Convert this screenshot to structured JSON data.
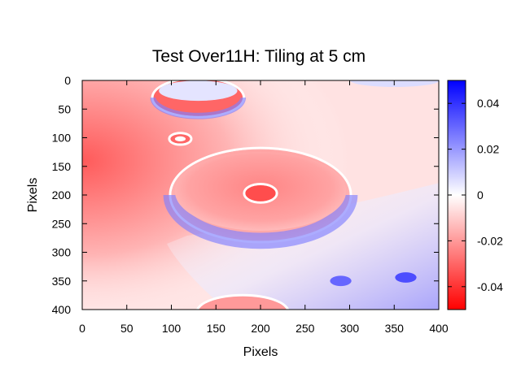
{
  "chart_data": {
    "type": "heatmap",
    "title": "Test Over11H: Tiling at 5 cm",
    "xlabel": "Pixels",
    "ylabel": "Pixels",
    "xlim": [
      0,
      400
    ],
    "ylim": [
      400,
      0
    ],
    "x_ticks": [
      "0",
      "50",
      "100",
      "150",
      "200",
      "250",
      "300",
      "350",
      "400"
    ],
    "y_ticks": [
      "0",
      "50",
      "100",
      "150",
      "200",
      "250",
      "300",
      "350",
      "400"
    ],
    "colorbar": {
      "min": -0.05,
      "max": 0.05,
      "ticks": [
        "0.04",
        "0.02",
        "0",
        "-0.02",
        "-0.04"
      ],
      "colors": {
        "low": "#ff0000",
        "mid": "#ffffff",
        "high": "#0000ff"
      }
    },
    "features": [
      {
        "shape": "ellipse",
        "cx": 200,
        "cy": 200,
        "rx": 100,
        "ry": 80,
        "value": -0.025,
        "note": "large tile"
      },
      {
        "shape": "ellipse",
        "cx": 130,
        "cy": 30,
        "rx": 50,
        "ry": 32,
        "value": -0.03,
        "note": "top tile"
      },
      {
        "shape": "ellipse",
        "cx": 200,
        "cy": 197,
        "rx": 17,
        "ry": 14,
        "value": -0.035,
        "note": "center spot"
      },
      {
        "shape": "ellipse",
        "cx": 110,
        "cy": 102,
        "rx": 11,
        "ry": 8,
        "value": -0.03,
        "note": "small spot"
      },
      {
        "shape": "ellipse",
        "cx": 290,
        "cy": 350,
        "rx": 12,
        "ry": 9,
        "value": 0.03,
        "note": "blue spot"
      },
      {
        "shape": "ellipse",
        "cx": 363,
        "cy": 344,
        "rx": 12,
        "ry": 9,
        "value": 0.035,
        "note": "blue spot"
      },
      {
        "shape": "ellipse",
        "cx": 180,
        "cy": 405,
        "rx": 50,
        "ry": 28,
        "value": -0.02,
        "note": "bottom tile"
      }
    ]
  }
}
